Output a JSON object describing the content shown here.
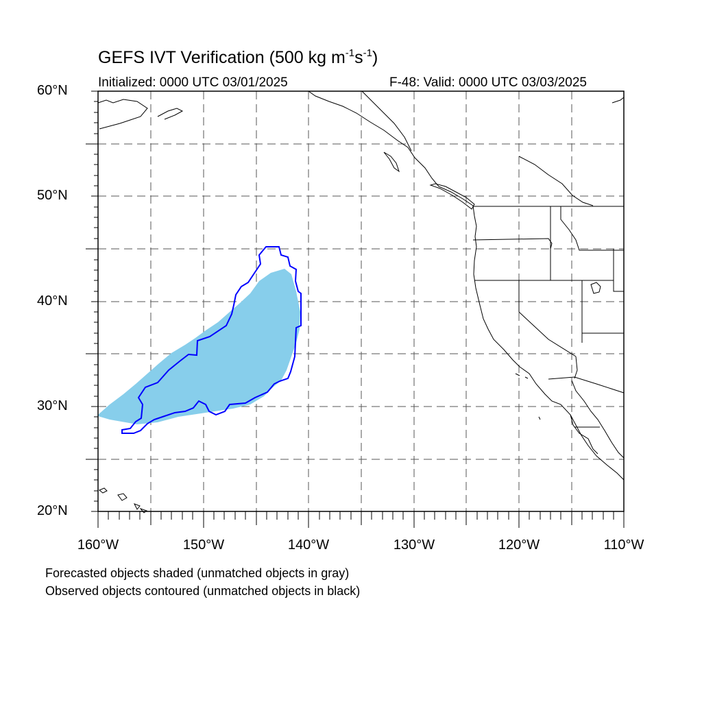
{
  "header": {
    "title_prefix": "GEFS IVT Verification (500 kg m",
    "title_exp1": "-1",
    "title_mid": "s",
    "title_exp2": "-1",
    "title_suffix": ")",
    "initialized": "Initialized: 0000 UTC 03/01/2025",
    "valid": "F-48: Valid: 0000 UTC 03/03/2025"
  },
  "axes": {
    "lat_labels": [
      "60°N",
      "50°N",
      "40°N",
      "30°N",
      "20°N"
    ],
    "lon_labels": [
      "160°W",
      "150°W",
      "140°W",
      "130°W",
      "120°W",
      "110°W"
    ]
  },
  "map_extent": {
    "lon_min": -160,
    "lon_max": -110,
    "lat_min": 20,
    "lat_max": 60
  },
  "objects": {
    "forecast_fill_color": "#87ceeb",
    "observed_contour_color": "#0000ff"
  },
  "legend": {
    "forecast_note": "Forecasted objects shaded (unmatched objects in gray)",
    "observed_note": "Observed objects contoured (unmatched objects in black)"
  }
}
